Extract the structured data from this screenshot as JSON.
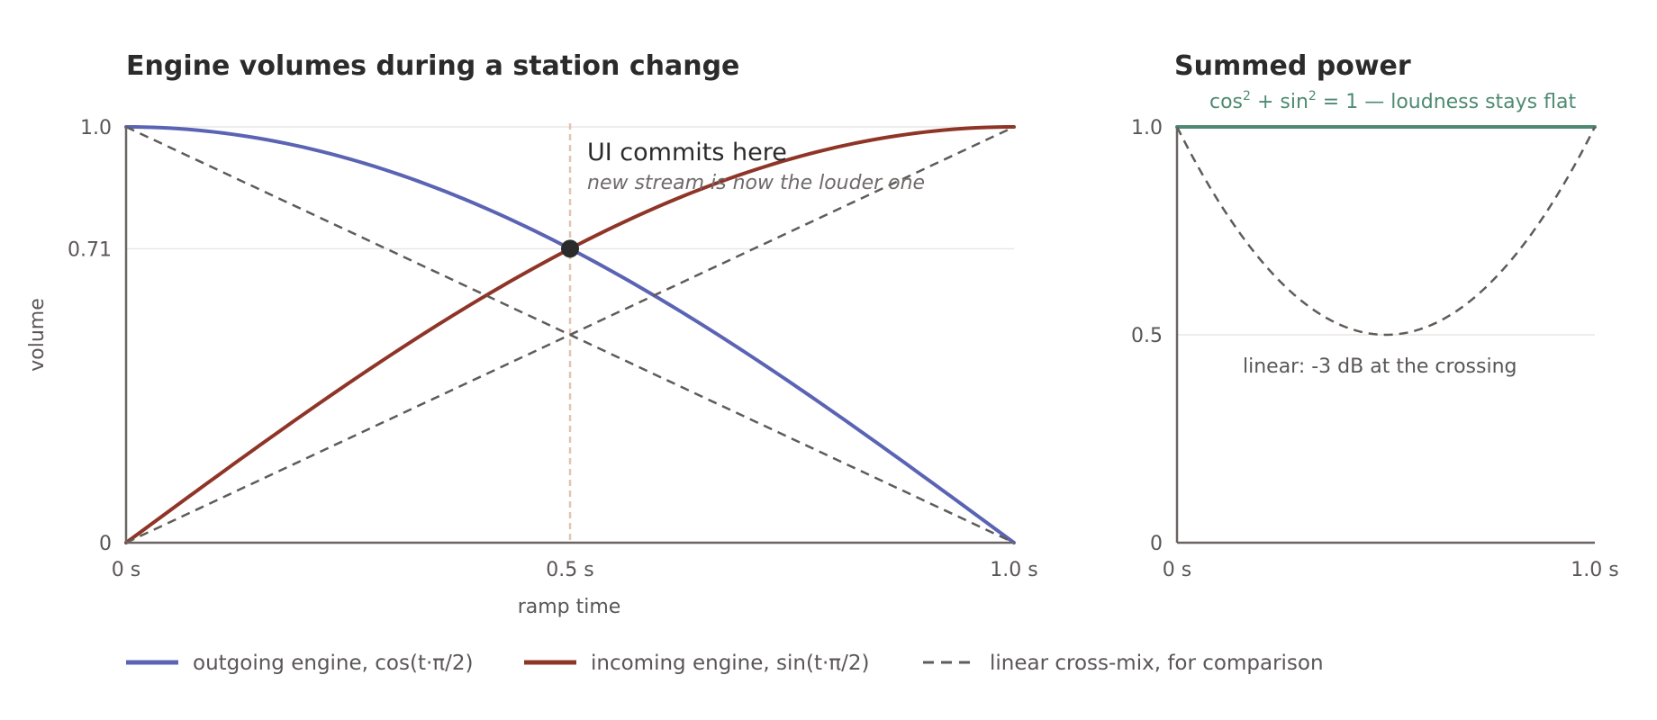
{
  "chart_data": [
    {
      "type": "line",
      "title": "Engine volumes during a station change",
      "xlabel": "ramp time",
      "ylabel": "volume",
      "xlim": [
        0,
        1
      ],
      "ylim": [
        0,
        1
      ],
      "x_ticks": [
        {
          "value": 0,
          "label": "0 s"
        },
        {
          "value": 0.5,
          "label": "0.5 s"
        },
        {
          "value": 1,
          "label": "1.0 s"
        }
      ],
      "y_ticks": [
        {
          "value": 0,
          "label": "0"
        },
        {
          "value": 0.7071,
          "label": "0.71"
        },
        {
          "value": 1,
          "label": "1.0"
        }
      ],
      "gridlines_y": [
        0.7071,
        1
      ],
      "series": [
        {
          "name": "outgoing engine, cos(t·π/2)",
          "function": "cos(t·π/2)",
          "color": "#5b64b4",
          "style": "solid",
          "x": [
            0,
            0.1,
            0.2,
            0.3,
            0.4,
            0.5,
            0.6,
            0.7,
            0.8,
            0.9,
            1.0
          ],
          "y": [
            1,
            0.988,
            0.951,
            0.891,
            0.809,
            0.707,
            0.588,
            0.454,
            0.309,
            0.156,
            0
          ]
        },
        {
          "name": "incoming engine, sin(t·π/2)",
          "function": "sin(t·π/2)",
          "color": "#8f3528",
          "style": "solid",
          "x": [
            0,
            0.1,
            0.2,
            0.3,
            0.4,
            0.5,
            0.6,
            0.7,
            0.8,
            0.9,
            1.0
          ],
          "y": [
            0,
            0.156,
            0.309,
            0.454,
            0.588,
            0.707,
            0.809,
            0.891,
            0.951,
            0.988,
            1
          ]
        },
        {
          "name": "linear cross-mix, for comparison",
          "color": "#5f5b58",
          "style": "dashed",
          "x": [
            0,
            1
          ],
          "y": [
            1,
            0
          ]
        },
        {
          "name": "linear cross-mix, for comparison",
          "color": "#5f5b58",
          "style": "dashed",
          "x": [
            0,
            1
          ],
          "y": [
            0,
            1
          ]
        }
      ],
      "marker": {
        "x": 0.5,
        "y": 0.7071,
        "color": "#2b2b2b"
      },
      "vertical_line": {
        "x": 0.5,
        "color": "#e2c4b2",
        "style": "dotted"
      },
      "annotation": {
        "title": "UI commits here",
        "subtitle": "new stream is now the louder one"
      }
    },
    {
      "type": "line",
      "title": "Summed power",
      "xlim": [
        0,
        1
      ],
      "ylim": [
        0,
        1
      ],
      "x_ticks": [
        {
          "value": 0,
          "label": "0 s"
        },
        {
          "value": 1,
          "label": "1.0 s"
        }
      ],
      "y_ticks": [
        {
          "value": 0,
          "label": "0"
        },
        {
          "value": 0.5,
          "label": "0.5"
        },
        {
          "value": 1,
          "label": "1.0"
        }
      ],
      "gridlines_y": [
        0.5
      ],
      "series": [
        {
          "name": "cos² + sin²",
          "color": "#4e8a72",
          "style": "solid",
          "x": [
            0,
            1
          ],
          "y": [
            1,
            1
          ]
        },
        {
          "name": "linear",
          "color": "#5f5b58",
          "style": "dashed",
          "x": [
            0,
            0.1,
            0.2,
            0.3,
            0.4,
            0.5,
            0.6,
            0.7,
            0.8,
            0.9,
            1.0
          ],
          "y": [
            1,
            0.82,
            0.68,
            0.58,
            0.52,
            0.5,
            0.52,
            0.58,
            0.68,
            0.82,
            1
          ]
        }
      ],
      "note_top": {
        "prefix": "cos",
        "sup1": "2",
        "mid": " + sin",
        "sup2": "2",
        "suffix": " = 1 — loudness stays flat"
      },
      "note_mid": "linear: -3 dB at the crossing"
    }
  ],
  "legend": {
    "placement": "bottom",
    "items": [
      {
        "label": "outgoing engine, cos(t·π/2)",
        "color": "#5b64b4",
        "style": "solid"
      },
      {
        "label": "incoming engine, sin(t·π/2)",
        "color": "#8f3528",
        "style": "solid"
      },
      {
        "label": "linear cross-mix, for comparison",
        "color": "#5f5b58",
        "style": "dashed"
      }
    ]
  }
}
